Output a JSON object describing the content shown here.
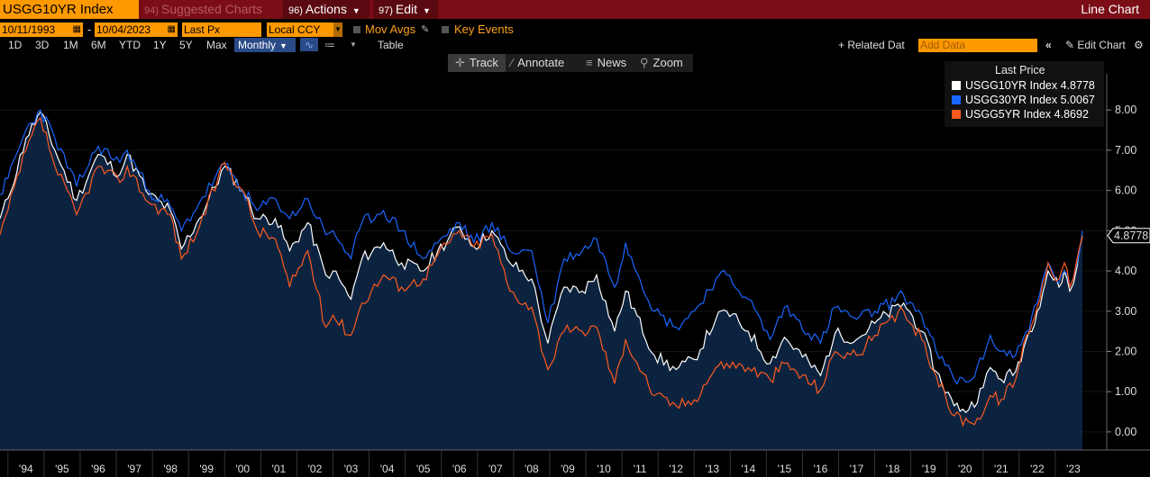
{
  "header": {
    "ticker": "USGG10YR Index",
    "suggested_num": "94)",
    "suggested_label": "Suggested Charts",
    "actions_num": "96)",
    "actions_label": "Actions",
    "edit_num": "97)",
    "edit_label": "Edit",
    "chart_type": "Line Chart"
  },
  "controls": {
    "start_date": "10/11/1993",
    "date_sep": "-",
    "end_date": "10/04/2023",
    "price_field": "Last Px",
    "currency": "Local CCY",
    "mov_avgs": "Mov Avgs",
    "key_events": "Key Events"
  },
  "toolbar2": {
    "ranges": [
      "1D",
      "3D",
      "1M",
      "6M",
      "YTD",
      "1Y",
      "5Y",
      "Max"
    ],
    "frequency": "Monthly",
    "table_label": "Table",
    "related_label": "+ Related Dat",
    "add_data_placeholder": "Add Data",
    "edit_chart_label": "Edit Chart"
  },
  "chart_tools": [
    "Track",
    "Annotate",
    "News",
    "Zoom"
  ],
  "colors": {
    "s10": "#ffffff",
    "s30": "#1a66ff",
    "s5": "#ff5a1f",
    "fill": "#0c2340"
  },
  "chart_data": {
    "type": "line",
    "x_start": 1993.78,
    "x_end": 2023.75,
    "xtick_labels": [
      "'94",
      "'95",
      "'96",
      "'97",
      "'98",
      "'99",
      "'00",
      "'01",
      "'02",
      "'03",
      "'04",
      "'05",
      "'06",
      "'07",
      "'08",
      "'09",
      "'10",
      "'11",
      "'12",
      "'13",
      "'14",
      "'15",
      "'16",
      "'17",
      "'18",
      "'19",
      "'20",
      "'21",
      "'22",
      "'23"
    ],
    "ylim": [
      -0.45,
      8.9
    ],
    "yticks": [
      "8.00",
      "7.00",
      "6.00",
      "5.00",
      "4.00",
      "3.00",
      "2.00",
      "1.00",
      "0.00"
    ],
    "legend_title": "Last Price",
    "last_value_label": "4.8778",
    "legend": [
      {
        "name": "USGG10YR Index",
        "value": "4.8778"
      },
      {
        "name": "USGG30YR Index",
        "value": "5.0067"
      },
      {
        "name": "USGG5YR Index",
        "value": "4.8692"
      }
    ],
    "series": [
      {
        "name": "USGG10YR Index",
        "points": [
          [
            1993.78,
            5.3
          ],
          [
            1994.0,
            5.8
          ],
          [
            1994.5,
            7.3
          ],
          [
            1994.9,
            7.95
          ],
          [
            1995.3,
            7.0
          ],
          [
            1995.9,
            5.75
          ],
          [
            1996.5,
            6.9
          ],
          [
            1997.1,
            6.4
          ],
          [
            1997.3,
            6.9
          ],
          [
            1997.9,
            5.9
          ],
          [
            1998.5,
            5.5
          ],
          [
            1998.8,
            4.55
          ],
          [
            1999.3,
            5.3
          ],
          [
            2000.0,
            6.6
          ],
          [
            2000.5,
            6.0
          ],
          [
            2000.9,
            5.3
          ],
          [
            2001.4,
            5.3
          ],
          [
            2001.8,
            4.5
          ],
          [
            2002.3,
            5.2
          ],
          [
            2002.8,
            3.9
          ],
          [
            2003.0,
            4.0
          ],
          [
            2003.5,
            3.3
          ],
          [
            2003.8,
            4.3
          ],
          [
            2004.4,
            4.7
          ],
          [
            2004.9,
            4.2
          ],
          [
            2005.5,
            4.0
          ],
          [
            2005.9,
            4.5
          ],
          [
            2006.5,
            5.1
          ],
          [
            2006.9,
            4.6
          ],
          [
            2007.4,
            5.0
          ],
          [
            2007.9,
            4.2
          ],
          [
            2008.5,
            3.8
          ],
          [
            2008.95,
            2.2
          ],
          [
            2009.4,
            3.6
          ],
          [
            2009.9,
            3.5
          ],
          [
            2010.3,
            3.9
          ],
          [
            2010.8,
            2.5
          ],
          [
            2011.1,
            3.5
          ],
          [
            2011.9,
            1.9
          ],
          [
            2012.5,
            1.55
          ],
          [
            2013.0,
            1.8
          ],
          [
            2013.6,
            2.8
          ],
          [
            2013.9,
            3.0
          ],
          [
            2014.5,
            2.5
          ],
          [
            2015.1,
            1.7
          ],
          [
            2015.5,
            2.35
          ],
          [
            2016.5,
            1.4
          ],
          [
            2016.9,
            2.45
          ],
          [
            2017.5,
            2.3
          ],
          [
            2018.0,
            2.7
          ],
          [
            2018.8,
            3.2
          ],
          [
            2019.3,
            2.5
          ],
          [
            2019.7,
            1.5
          ],
          [
            2020.2,
            0.65
          ],
          [
            2020.6,
            0.55
          ],
          [
            2021.0,
            1.1
          ],
          [
            2021.2,
            1.6
          ],
          [
            2021.5,
            1.3
          ],
          [
            2021.9,
            1.5
          ],
          [
            2022.2,
            2.3
          ],
          [
            2022.5,
            3.0
          ],
          [
            2022.8,
            4.0
          ],
          [
            2023.1,
            3.6
          ],
          [
            2023.25,
            4.0
          ],
          [
            2023.4,
            3.5
          ],
          [
            2023.6,
            4.1
          ],
          [
            2023.75,
            4.88
          ]
        ]
      },
      {
        "name": "USGG30YR Index",
        "points": [
          [
            1993.78,
            5.9
          ],
          [
            1994.0,
            6.3
          ],
          [
            1994.5,
            7.5
          ],
          [
            1994.9,
            8.0
          ],
          [
            1995.3,
            7.3
          ],
          [
            1995.9,
            6.1
          ],
          [
            1996.5,
            7.1
          ],
          [
            1997.1,
            6.7
          ],
          [
            1997.3,
            7.0
          ],
          [
            1997.9,
            6.0
          ],
          [
            1998.5,
            5.6
          ],
          [
            1998.8,
            5.0
          ],
          [
            1999.3,
            5.7
          ],
          [
            2000.0,
            6.65
          ],
          [
            2000.5,
            6.0
          ],
          [
            2000.9,
            5.5
          ],
          [
            2001.4,
            5.8
          ],
          [
            2001.8,
            5.3
          ],
          [
            2002.3,
            5.8
          ],
          [
            2002.8,
            4.9
          ],
          [
            2003.0,
            5.0
          ],
          [
            2003.5,
            4.3
          ],
          [
            2003.8,
            5.2
          ],
          [
            2004.4,
            5.5
          ],
          [
            2004.9,
            5.0
          ],
          [
            2005.5,
            4.3
          ],
          [
            2005.9,
            4.7
          ],
          [
            2006.5,
            5.2
          ],
          [
            2006.9,
            4.7
          ],
          [
            2007.4,
            5.2
          ],
          [
            2007.9,
            4.5
          ],
          [
            2008.5,
            4.5
          ],
          [
            2008.95,
            2.7
          ],
          [
            2009.4,
            4.3
          ],
          [
            2009.9,
            4.5
          ],
          [
            2010.3,
            4.8
          ],
          [
            2010.8,
            3.6
          ],
          [
            2011.1,
            4.7
          ],
          [
            2011.9,
            3.0
          ],
          [
            2012.5,
            2.6
          ],
          [
            2013.0,
            3.0
          ],
          [
            2013.6,
            3.8
          ],
          [
            2013.9,
            3.9
          ],
          [
            2014.5,
            3.3
          ],
          [
            2015.1,
            2.3
          ],
          [
            2015.5,
            3.1
          ],
          [
            2016.5,
            2.2
          ],
          [
            2016.9,
            3.1
          ],
          [
            2017.5,
            2.8
          ],
          [
            2018.0,
            3.0
          ],
          [
            2018.8,
            3.4
          ],
          [
            2019.3,
            2.9
          ],
          [
            2019.7,
            2.0
          ],
          [
            2020.2,
            1.3
          ],
          [
            2020.6,
            1.25
          ],
          [
            2021.0,
            1.8
          ],
          [
            2021.2,
            2.4
          ],
          [
            2021.5,
            2.0
          ],
          [
            2021.9,
            1.9
          ],
          [
            2022.2,
            2.5
          ],
          [
            2022.5,
            3.2
          ],
          [
            2022.8,
            4.2
          ],
          [
            2023.1,
            3.7
          ],
          [
            2023.25,
            4.0
          ],
          [
            2023.4,
            3.6
          ],
          [
            2023.6,
            4.2
          ],
          [
            2023.75,
            5.0
          ]
        ]
      },
      {
        "name": "USGG5YR Index",
        "points": [
          [
            1993.78,
            4.9
          ],
          [
            1994.0,
            5.5
          ],
          [
            1994.5,
            7.0
          ],
          [
            1994.9,
            7.8
          ],
          [
            1995.3,
            6.6
          ],
          [
            1995.9,
            5.4
          ],
          [
            1996.5,
            6.6
          ],
          [
            1997.1,
            6.2
          ],
          [
            1997.3,
            6.6
          ],
          [
            1997.9,
            5.7
          ],
          [
            1998.5,
            5.4
          ],
          [
            1998.8,
            4.3
          ],
          [
            1999.3,
            5.1
          ],
          [
            2000.0,
            6.7
          ],
          [
            2000.5,
            6.0
          ],
          [
            2000.9,
            5.0
          ],
          [
            2001.4,
            4.8
          ],
          [
            2001.8,
            3.6
          ],
          [
            2002.3,
            4.5
          ],
          [
            2002.8,
            2.6
          ],
          [
            2003.0,
            2.9
          ],
          [
            2003.5,
            2.4
          ],
          [
            2003.8,
            3.2
          ],
          [
            2004.4,
            3.9
          ],
          [
            2004.9,
            3.6
          ],
          [
            2005.5,
            3.8
          ],
          [
            2005.9,
            4.4
          ],
          [
            2006.5,
            5.0
          ],
          [
            2006.9,
            4.6
          ],
          [
            2007.4,
            4.9
          ],
          [
            2007.9,
            3.5
          ],
          [
            2008.5,
            3.1
          ],
          [
            2008.95,
            1.55
          ],
          [
            2009.4,
            2.5
          ],
          [
            2009.9,
            2.5
          ],
          [
            2010.3,
            2.6
          ],
          [
            2010.8,
            1.2
          ],
          [
            2011.1,
            2.3
          ],
          [
            2011.9,
            0.9
          ],
          [
            2012.5,
            0.65
          ],
          [
            2013.0,
            0.8
          ],
          [
            2013.6,
            1.6
          ],
          [
            2013.9,
            1.7
          ],
          [
            2014.5,
            1.6
          ],
          [
            2015.1,
            1.3
          ],
          [
            2015.5,
            1.7
          ],
          [
            2016.5,
            1.05
          ],
          [
            2016.9,
            2.0
          ],
          [
            2017.5,
            1.9
          ],
          [
            2018.0,
            2.4
          ],
          [
            2018.8,
            3.0
          ],
          [
            2019.3,
            2.3
          ],
          [
            2019.7,
            1.4
          ],
          [
            2020.2,
            0.4
          ],
          [
            2020.6,
            0.25
          ],
          [
            2021.0,
            0.45
          ],
          [
            2021.2,
            0.9
          ],
          [
            2021.5,
            0.8
          ],
          [
            2021.9,
            1.3
          ],
          [
            2022.2,
            2.4
          ],
          [
            2022.5,
            3.1
          ],
          [
            2022.8,
            4.2
          ],
          [
            2023.1,
            3.8
          ],
          [
            2023.25,
            4.2
          ],
          [
            2023.4,
            3.6
          ],
          [
            2023.6,
            4.3
          ],
          [
            2023.75,
            4.87
          ]
        ]
      }
    ]
  }
}
